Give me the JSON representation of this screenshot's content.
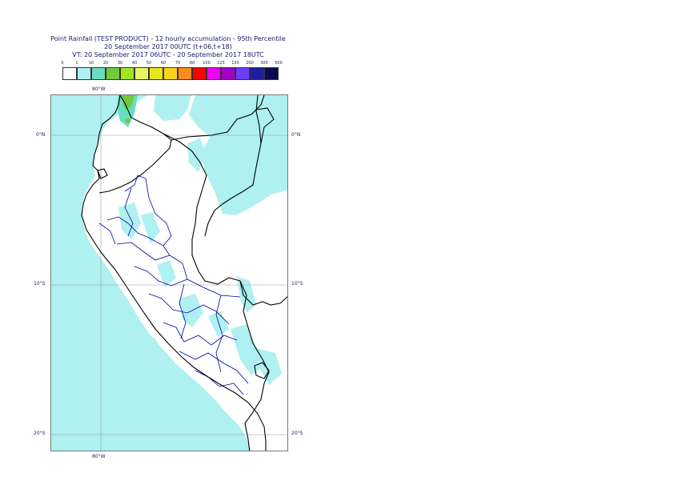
{
  "header": {
    "title_line1": "Point Rainfall (TEST PRODUCT) - 12 hourly accumulation - 95th Percentile",
    "title_line2": "20 September 2017 00UTC (t+06,t+18)",
    "title_line3": "VT: 20 September 2017 06UTC - 20 September 2017 18UTC"
  },
  "legend": {
    "ticks": [
      "0",
      "1",
      "10",
      "20",
      "30",
      "40",
      "50",
      "60",
      "70",
      "80",
      "100",
      "125",
      "150",
      "200",
      "300",
      "500"
    ],
    "colors": [
      "#ffffff",
      "#aff0f0",
      "#69dcbe",
      "#73c83c",
      "#a0e61e",
      "#e6f564",
      "#e6e61e",
      "#fad21e",
      "#fa8c1e",
      "#fa0000",
      "#f000f0",
      "#a000c8",
      "#6e3cff",
      "#1e1ea0",
      "#0a0a50"
    ]
  },
  "map": {
    "lon_labels": [
      "80°W",
      "80°W"
    ],
    "lat_labels": [
      {
        "left": "0°N",
        "right": "0°N"
      },
      {
        "left": "10°S",
        "right": "10°S"
      },
      {
        "left": "20°S",
        "right": "20°S"
      }
    ],
    "colors": {
      "precip_light": "#aff0f0",
      "precip_medium": "#69dcbe",
      "precip_heavy": "#73c83c",
      "coastline": "#000000",
      "borders": "#0000aa",
      "grid": "#999999"
    }
  }
}
